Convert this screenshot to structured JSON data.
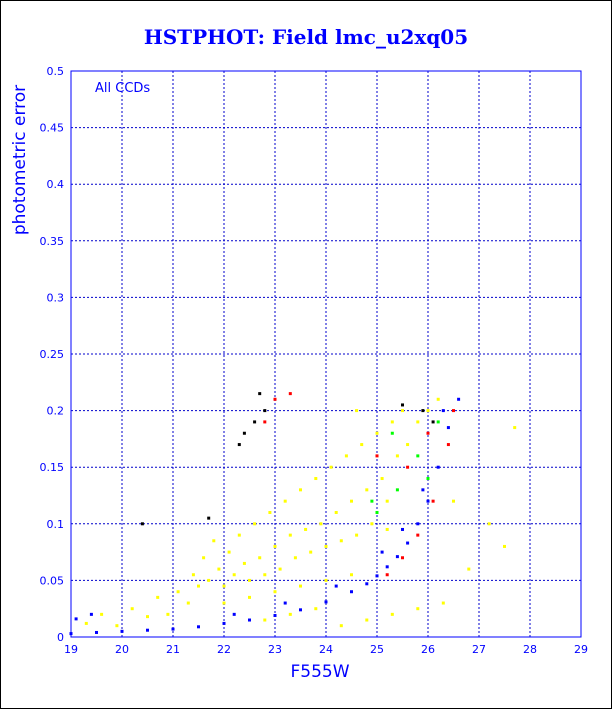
{
  "colors": {
    "frame": "#0000ff",
    "grid": "#0000cc",
    "title": "#0000ff",
    "tick_text": "#0000ff",
    "axis_label": "#0000ff",
    "series_blue": "#0000ff",
    "series_yellow": "#ffff00",
    "series_red": "#ff0000",
    "series_green": "#00ff00",
    "series_black": "#000000"
  },
  "chart_data": {
    "type": "scatter",
    "title": "HSTPHOT: Field lmc_u2xq05",
    "annotation": "All CCDs",
    "xlabel": "F555W",
    "ylabel": "photometric error",
    "xlim": [
      19,
      29
    ],
    "ylim": [
      0,
      0.5
    ],
    "x_ticks": [
      "19",
      "20",
      "21",
      "22",
      "23",
      "24",
      "25",
      "26",
      "27",
      "28",
      "29"
    ],
    "y_ticks": [
      "0",
      "0.05",
      "0.1",
      "0.15",
      "0.2",
      "0.25",
      "0.3",
      "0.35",
      "0.4",
      "0.45",
      "0.5"
    ],
    "grid": true,
    "series": [
      {
        "color": "#ffff00",
        "points": [
          [
            19.3,
            0.012
          ],
          [
            19.6,
            0.02
          ],
          [
            19.9,
            0.01
          ],
          [
            20.2,
            0.025
          ],
          [
            20.5,
            0.018
          ],
          [
            20.7,
            0.035
          ],
          [
            20.9,
            0.02
          ],
          [
            21.1,
            0.04
          ],
          [
            21.3,
            0.03
          ],
          [
            21.4,
            0.055
          ],
          [
            21.5,
            0.045
          ],
          [
            21.6,
            0.07
          ],
          [
            21.7,
            0.05
          ],
          [
            21.8,
            0.085
          ],
          [
            21.9,
            0.06
          ],
          [
            22.0,
            0.045
          ],
          [
            22.1,
            0.075
          ],
          [
            22.2,
            0.055
          ],
          [
            22.3,
            0.09
          ],
          [
            22.4,
            0.065
          ],
          [
            22.5,
            0.05
          ],
          [
            22.6,
            0.1
          ],
          [
            22.7,
            0.07
          ],
          [
            22.8,
            0.055
          ],
          [
            22.9,
            0.11
          ],
          [
            23.0,
            0.08
          ],
          [
            23.1,
            0.06
          ],
          [
            23.2,
            0.12
          ],
          [
            23.3,
            0.09
          ],
          [
            23.4,
            0.07
          ],
          [
            23.5,
            0.13
          ],
          [
            23.6,
            0.095
          ],
          [
            23.7,
            0.075
          ],
          [
            23.8,
            0.14
          ],
          [
            23.9,
            0.1
          ],
          [
            24.0,
            0.08
          ],
          [
            24.1,
            0.15
          ],
          [
            24.2,
            0.11
          ],
          [
            24.3,
            0.085
          ],
          [
            24.4,
            0.16
          ],
          [
            24.5,
            0.12
          ],
          [
            24.6,
            0.09
          ],
          [
            24.7,
            0.17
          ],
          [
            24.8,
            0.13
          ],
          [
            24.9,
            0.1
          ],
          [
            25.0,
            0.18
          ],
          [
            25.1,
            0.14
          ],
          [
            25.2,
            0.12
          ],
          [
            25.3,
            0.19
          ],
          [
            25.4,
            0.16
          ],
          [
            25.5,
            0.2
          ],
          [
            25.6,
            0.17
          ],
          [
            25.8,
            0.19
          ],
          [
            26.0,
            0.2
          ],
          [
            26.2,
            0.21
          ],
          [
            22.0,
            0.03
          ],
          [
            22.5,
            0.035
          ],
          [
            23.0,
            0.04
          ],
          [
            23.5,
            0.045
          ],
          [
            24.0,
            0.05
          ],
          [
            24.5,
            0.055
          ],
          [
            22.8,
            0.015
          ],
          [
            23.3,
            0.02
          ],
          [
            23.8,
            0.025
          ],
          [
            24.3,
            0.01
          ],
          [
            24.8,
            0.015
          ],
          [
            25.3,
            0.02
          ],
          [
            25.8,
            0.025
          ],
          [
            26.3,
            0.03
          ],
          [
            26.8,
            0.06
          ],
          [
            27.2,
            0.1
          ],
          [
            27.5,
            0.08
          ],
          [
            27.7,
            0.185
          ],
          [
            26.5,
            0.12
          ],
          [
            24.6,
            0.2
          ],
          [
            25.2,
            0.095
          ]
        ]
      },
      {
        "color": "#0000ff",
        "points": [
          [
            19.0,
            0.003
          ],
          [
            19.5,
            0.004
          ],
          [
            20.0,
            0.005
          ],
          [
            20.5,
            0.006
          ],
          [
            21.0,
            0.007
          ],
          [
            21.5,
            0.009
          ],
          [
            22.0,
            0.012
          ],
          [
            22.5,
            0.015
          ],
          [
            23.0,
            0.019
          ],
          [
            23.5,
            0.024
          ],
          [
            24.0,
            0.031
          ],
          [
            24.5,
            0.04
          ],
          [
            24.8,
            0.047
          ],
          [
            25.0,
            0.054
          ],
          [
            25.2,
            0.062
          ],
          [
            25.4,
            0.071
          ],
          [
            25.6,
            0.083
          ],
          [
            25.8,
            0.1
          ],
          [
            26.0,
            0.12
          ],
          [
            26.2,
            0.15
          ],
          [
            26.4,
            0.185
          ],
          [
            26.6,
            0.21
          ],
          [
            19.1,
            0.016
          ],
          [
            19.4,
            0.02
          ],
          [
            22.2,
            0.02
          ],
          [
            23.2,
            0.03
          ],
          [
            24.2,
            0.045
          ],
          [
            25.1,
            0.075
          ],
          [
            25.5,
            0.095
          ],
          [
            25.9,
            0.13
          ],
          [
            26.3,
            0.2
          ]
        ]
      },
      {
        "color": "#ff0000",
        "points": [
          [
            25.2,
            0.055
          ],
          [
            25.5,
            0.07
          ],
          [
            25.8,
            0.09
          ],
          [
            26.1,
            0.12
          ],
          [
            26.4,
            0.17
          ],
          [
            26.5,
            0.2
          ],
          [
            23.0,
            0.21
          ],
          [
            23.3,
            0.215
          ],
          [
            22.8,
            0.19
          ],
          [
            25.0,
            0.16
          ],
          [
            25.6,
            0.15
          ],
          [
            26.0,
            0.18
          ]
        ]
      },
      {
        "color": "#00ff00",
        "points": [
          [
            25.0,
            0.11
          ],
          [
            25.4,
            0.13
          ],
          [
            25.8,
            0.16
          ],
          [
            26.0,
            0.14
          ],
          [
            25.3,
            0.18
          ],
          [
            24.9,
            0.12
          ],
          [
            26.2,
            0.19
          ]
        ]
      },
      {
        "color": "#000000",
        "points": [
          [
            22.3,
            0.17
          ],
          [
            22.4,
            0.18
          ],
          [
            22.6,
            0.19
          ],
          [
            22.8,
            0.2
          ],
          [
            22.7,
            0.215
          ],
          [
            21.7,
            0.105
          ],
          [
            20.4,
            0.1
          ],
          [
            25.5,
            0.205
          ],
          [
            25.9,
            0.2
          ],
          [
            26.1,
            0.19
          ]
        ]
      }
    ]
  }
}
